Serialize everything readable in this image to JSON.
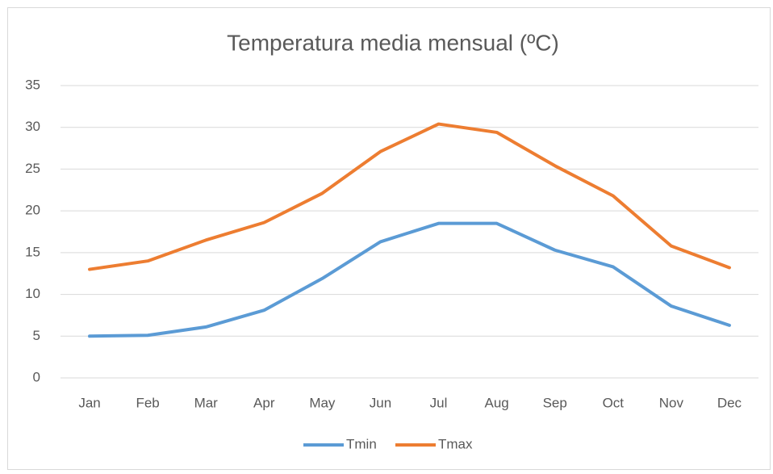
{
  "chart_data": {
    "type": "line",
    "title": "Temperatura media mensual (ºC)",
    "categories": [
      "Jan",
      "Feb",
      "Mar",
      "Apr",
      "May",
      "Jun",
      "Jul",
      "Aug",
      "Sep",
      "Oct",
      "Nov",
      "Dec"
    ],
    "series": [
      {
        "name": "Tmin",
        "color": "#5b9bd5",
        "values": [
          5.0,
          5.1,
          6.1,
          8.1,
          11.9,
          16.3,
          18.5,
          18.5,
          15.3,
          13.3,
          8.6,
          6.3
        ]
      },
      {
        "name": "Tmax",
        "color": "#ed7d31",
        "values": [
          13.0,
          14.0,
          16.5,
          18.6,
          22.1,
          27.1,
          30.4,
          29.4,
          25.4,
          21.8,
          15.8,
          13.2
        ]
      }
    ],
    "ylim": [
      0,
      35
    ],
    "yticks": [
      0,
      5,
      10,
      15,
      20,
      25,
      30,
      35
    ],
    "grid": true,
    "legend": "bottom"
  }
}
